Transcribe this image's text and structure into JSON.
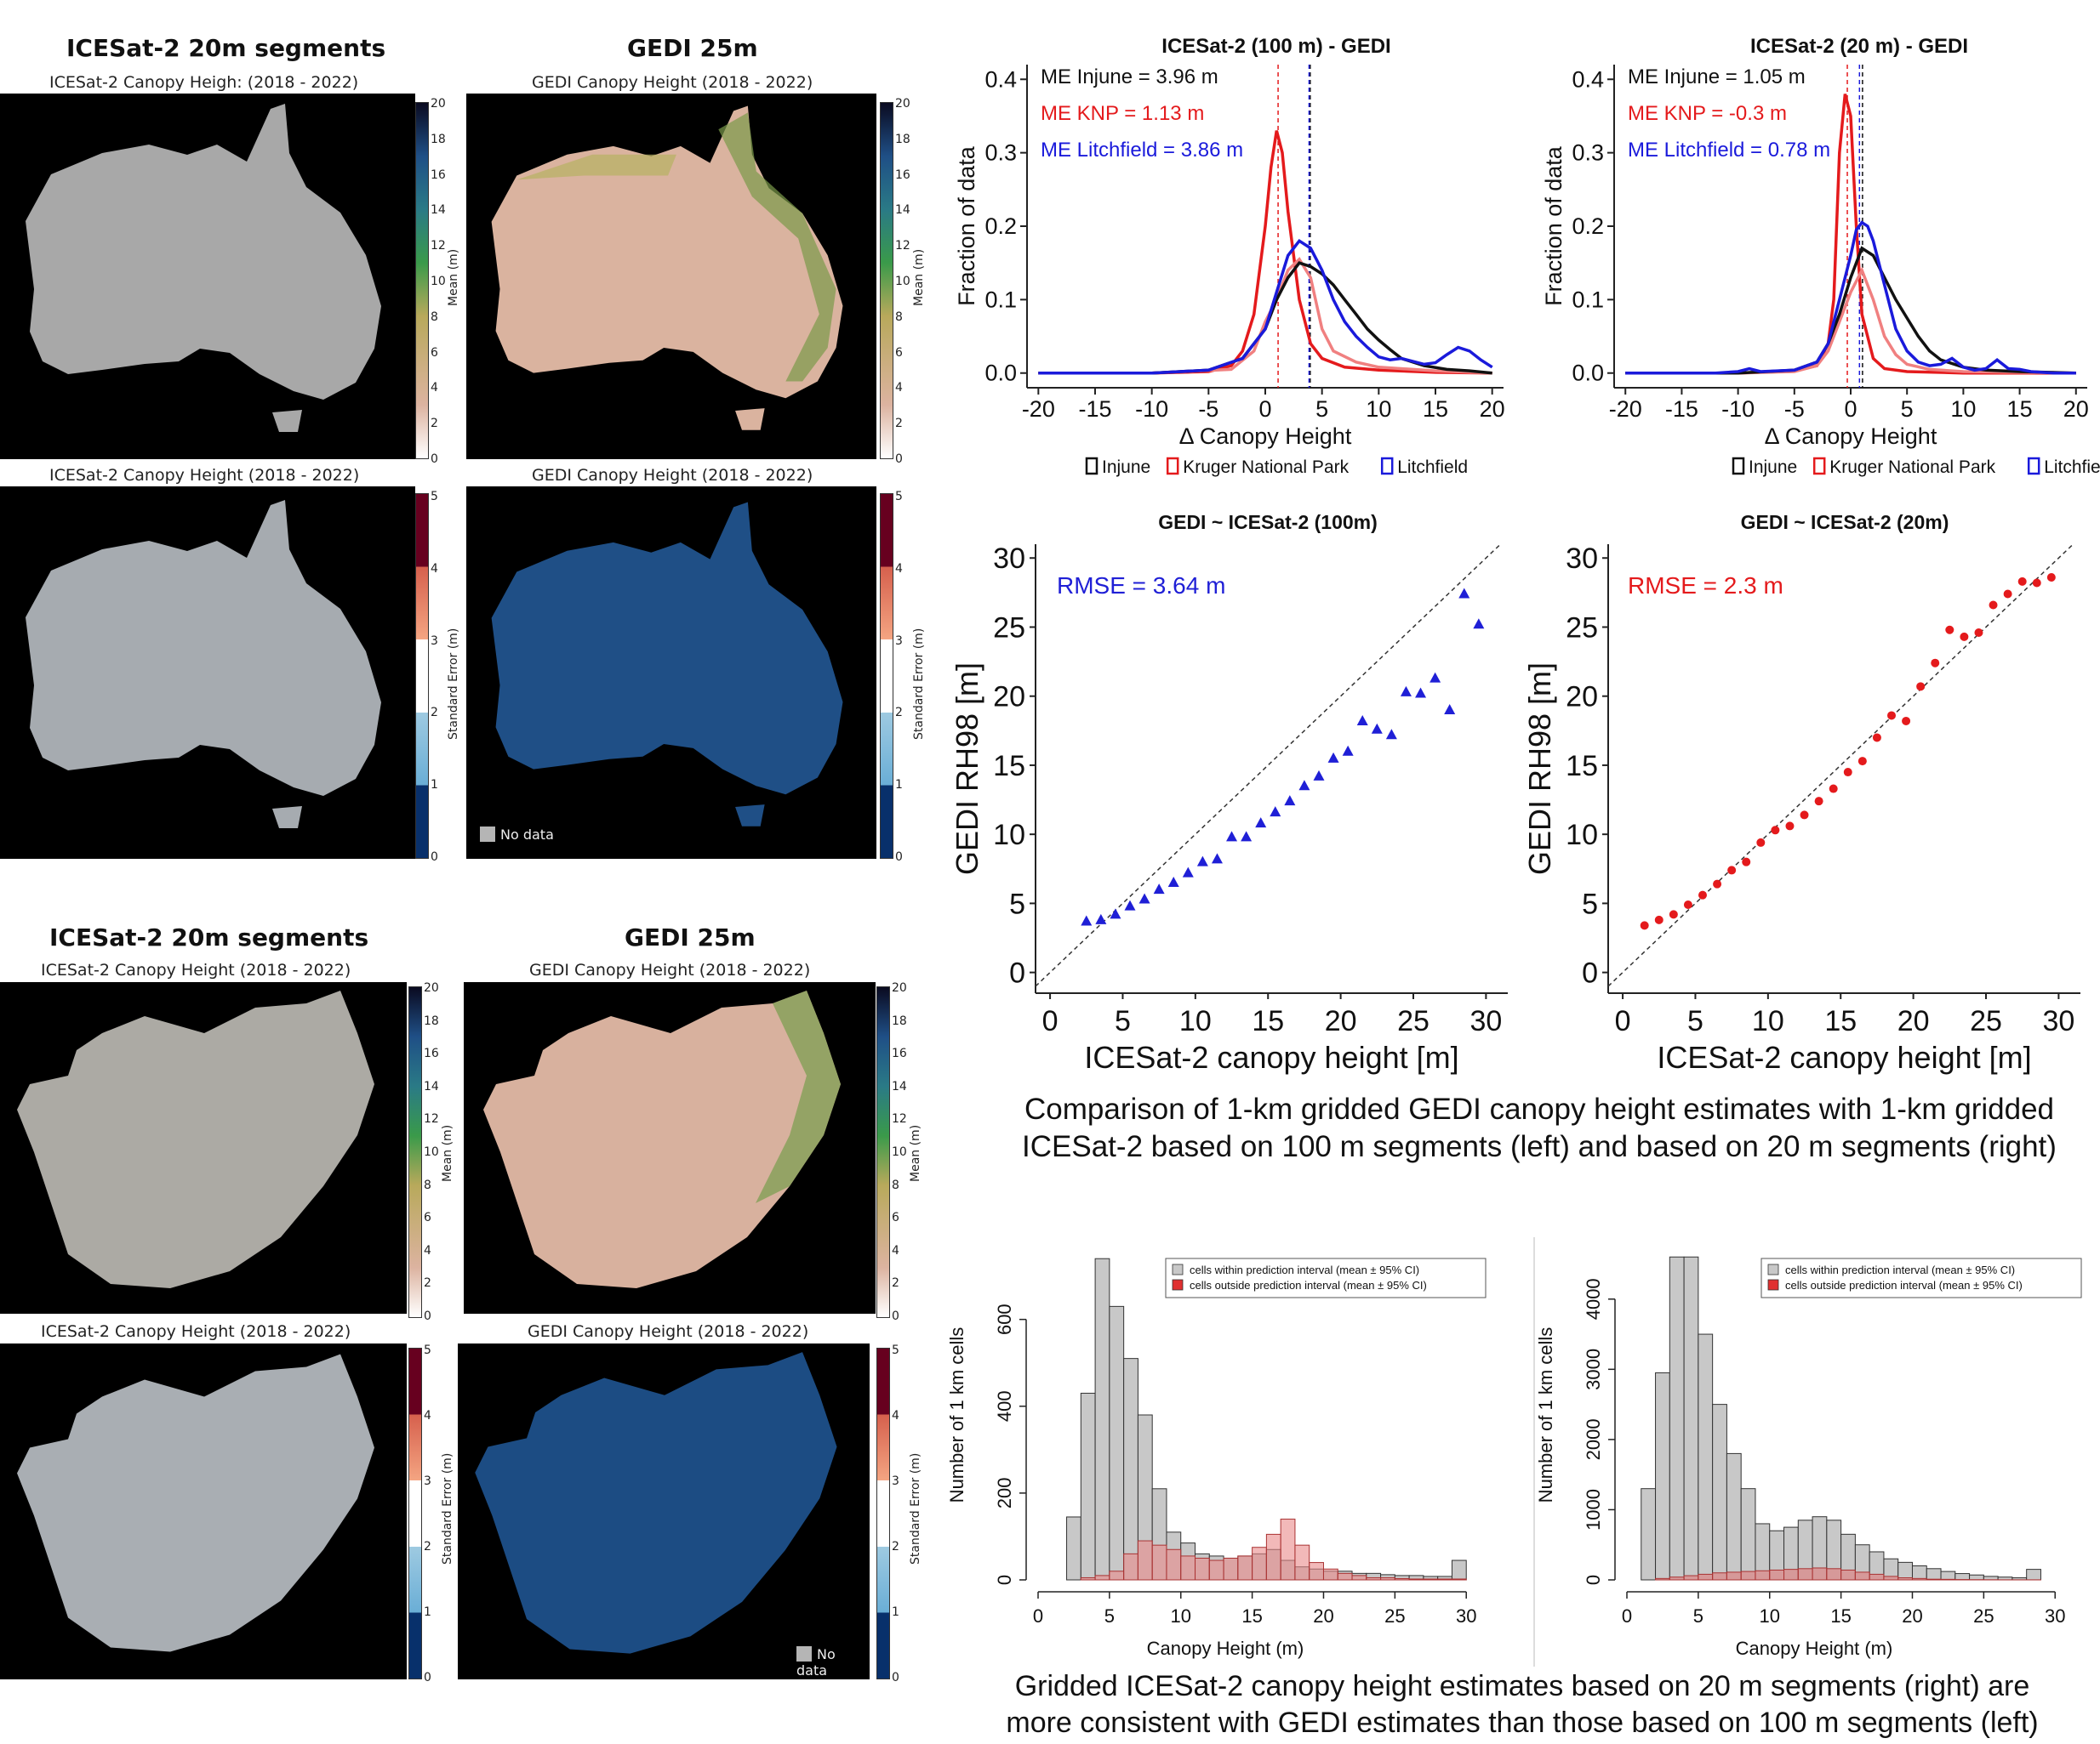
{
  "maps": {
    "australia": {
      "left_title": "ICESat-2 20m segments",
      "right_title": "GEDI 25m",
      "panels": [
        {
          "subtitle": "ICESat-2 Canopy Heigh: (2018 - 2022)",
          "metric": "Mean",
          "color": "#a8a8a8"
        },
        {
          "subtitle": "GEDI Canopy Height (2018 - 2022)",
          "metric": "Mean",
          "color": "#dab39f"
        },
        {
          "subtitle": "ICESat-2 Canopy Height (2018 - 2022)",
          "metric": "Standard Error",
          "color": "#a6abb0"
        },
        {
          "subtitle": "GEDI Canopy Height (2018 - 2022)",
          "metric": "Standard Error",
          "color": "#1f4f86"
        }
      ]
    },
    "south_africa": {
      "left_title": "ICESat-2 20m segments",
      "right_title": "GEDI 25m",
      "panels": [
        {
          "subtitle": "ICESat-2 Canopy Height (2018 - 2022)",
          "metric": "Mean",
          "color": "#acaaa4"
        },
        {
          "subtitle": "GEDI Canopy Height (2018 - 2022)",
          "metric": "Mean",
          "color": "#d8b19e"
        },
        {
          "subtitle": "ICESat-2 Canopy Height (2018 - 2022)",
          "metric": "Standard Error",
          "color": "#a9aeb3"
        },
        {
          "subtitle": "GEDI Canopy Height (2018 - 2022)",
          "metric": "Standard Error",
          "color": "#1c4c83"
        }
      ]
    },
    "mean_colorbar": {
      "title": "Mean (m)",
      "ticks": [
        "20",
        "18",
        "16",
        "14",
        "12",
        "10",
        "8",
        "6",
        "4",
        "2",
        "0"
      ]
    },
    "se_colorbar": {
      "title": "Standard Error (m)",
      "ticks": [
        "5",
        "4",
        "3",
        "2",
        "1",
        "0"
      ]
    },
    "no_data_label": "No data"
  },
  "captions": {
    "scatter": "Comparison of 1-km gridded GEDI canopy height estimates with 1-km gridded\nICESat-2 based on 100 m segments (left) and based on 20 m segments (right)",
    "histograms": "Gridded ICESat-2 canopy height estimates based on 20 m segments (right) are\nmore consistent with GEDI estimates than those based on 100 m segments (left)"
  },
  "chart_data": [
    {
      "type": "line",
      "title": "ICESat-2 (100 m) - GEDI",
      "xlabel": "Δ Canopy Height",
      "ylabel": "Fraction of data",
      "xlim": [
        -21,
        21
      ],
      "ylim": [
        -0.02,
        0.42
      ],
      "xticks": [
        -20,
        -15,
        -10,
        -5,
        0,
        5,
        10,
        15,
        20
      ],
      "yticks": [
        0.0,
        0.1,
        0.2,
        0.3,
        0.4
      ],
      "ytick_labels": [
        "0.0",
        "0.1",
        "0.2",
        "0.3",
        "0.4"
      ],
      "annotations": [
        {
          "text": "ME Injune = 3.96 m",
          "color": "#111111"
        },
        {
          "text": "ME KNP = 1.13 m",
          "color": "#e41a1c"
        },
        {
          "text": "ME Litchfield = 3.86 m",
          "color": "#1a1adb"
        }
      ],
      "vlines": [
        {
          "x": 3.96,
          "color": "#111111"
        },
        {
          "x": 1.13,
          "color": "#e41a1c"
        },
        {
          "x": 3.86,
          "color": "#1a1adb"
        }
      ],
      "legend": [
        "Injune",
        "Kruger National Park",
        "Litchfield"
      ],
      "legend_colors": [
        "#111111",
        "#e41a1c",
        "#1a1adb"
      ],
      "series": [
        {
          "name": "Kruger National Park",
          "color": "#e41a1c",
          "x": [
            -20,
            -10,
            -5,
            -3,
            -2,
            -1,
            0,
            0.5,
            1,
            1.5,
            2,
            3,
            4,
            5,
            7,
            10,
            15,
            20
          ],
          "y": [
            0,
            0,
            0.002,
            0.01,
            0.03,
            0.08,
            0.2,
            0.28,
            0.33,
            0.3,
            0.22,
            0.1,
            0.04,
            0.02,
            0.008,
            0.004,
            0.001,
            0
          ]
        },
        {
          "name": "Kruger National Park (light)",
          "color": "#f08080",
          "x": [
            -20,
            -10,
            -3,
            -1,
            0,
            1,
            2,
            3,
            4,
            5,
            6,
            8,
            10,
            15,
            20
          ],
          "y": [
            0,
            0,
            0.005,
            0.03,
            0.07,
            0.1,
            0.14,
            0.155,
            0.13,
            0.06,
            0.03,
            0.015,
            0.008,
            0.003,
            0
          ]
        },
        {
          "name": "Injune",
          "color": "#111111",
          "x": [
            -20,
            -10,
            -5,
            -2,
            0,
            1,
            2,
            3,
            4,
            5,
            6,
            7,
            8,
            9,
            10,
            11,
            12,
            14,
            16,
            18,
            20
          ],
          "y": [
            0,
            0,
            0.004,
            0.02,
            0.06,
            0.1,
            0.13,
            0.15,
            0.145,
            0.135,
            0.12,
            0.1,
            0.08,
            0.06,
            0.045,
            0.032,
            0.02,
            0.01,
            0.005,
            0.003,
            0
          ]
        },
        {
          "name": "Litchfield",
          "color": "#1a1adb",
          "x": [
            -20,
            -10,
            -5,
            -2,
            0,
            1,
            2,
            3,
            4,
            5,
            6,
            7,
            8,
            9,
            10,
            11,
            12,
            13,
            14,
            15,
            16,
            17,
            18,
            19,
            20
          ],
          "y": [
            0,
            0,
            0.004,
            0.02,
            0.06,
            0.11,
            0.16,
            0.18,
            0.17,
            0.14,
            0.1,
            0.07,
            0.05,
            0.035,
            0.022,
            0.018,
            0.02,
            0.016,
            0.012,
            0.014,
            0.025,
            0.035,
            0.03,
            0.018,
            0.008
          ]
        }
      ]
    },
    {
      "type": "line",
      "title": "ICESat-2 (20 m) - GEDI",
      "xlabel": "Δ Canopy Height",
      "ylabel": "Fraction of data",
      "xlim": [
        -21,
        21
      ],
      "ylim": [
        -0.02,
        0.42
      ],
      "xticks": [
        -20,
        -15,
        -10,
        -5,
        0,
        5,
        10,
        15,
        20
      ],
      "yticks": [
        0.0,
        0.1,
        0.2,
        0.3,
        0.4
      ],
      "ytick_labels": [
        "0.0",
        "0.1",
        "0.2",
        "0.3",
        "0.4"
      ],
      "annotations": [
        {
          "text": "ME Injune = 1.05 m",
          "color": "#111111"
        },
        {
          "text": "ME KNP = -0.3 m",
          "color": "#e41a1c"
        },
        {
          "text": "ME Litchfield = 0.78 m",
          "color": "#1a1adb"
        }
      ],
      "vlines": [
        {
          "x": 1.05,
          "color": "#111111"
        },
        {
          "x": -0.3,
          "color": "#e41a1c"
        },
        {
          "x": 0.78,
          "color": "#1a1adb"
        }
      ],
      "legend": [
        "Injune",
        "Kruger National Park",
        "Litchfield"
      ],
      "legend_colors": [
        "#111111",
        "#e41a1c",
        "#1a1adb"
      ],
      "series": [
        {
          "name": "Kruger National Park",
          "color": "#e41a1c",
          "x": [
            -20,
            -10,
            -5,
            -3,
            -2,
            -1.5,
            -1,
            -0.5,
            0,
            0.5,
            1,
            2,
            3,
            5,
            10,
            20
          ],
          "y": [
            0,
            0,
            0.003,
            0.01,
            0.04,
            0.1,
            0.3,
            0.38,
            0.35,
            0.2,
            0.08,
            0.02,
            0.006,
            0.002,
            0,
            0
          ]
        },
        {
          "name": "Kruger National Park (light)",
          "color": "#f08080",
          "x": [
            -20,
            -10,
            -5,
            -3,
            -2,
            -1,
            0,
            1,
            2,
            3,
            4,
            5,
            7,
            10,
            20
          ],
          "y": [
            0,
            0,
            0.002,
            0.01,
            0.03,
            0.07,
            0.11,
            0.14,
            0.1,
            0.05,
            0.025,
            0.012,
            0.005,
            0.002,
            0
          ]
        },
        {
          "name": "Injune",
          "color": "#111111",
          "x": [
            -20,
            -10,
            -5,
            -3,
            -2,
            -1,
            0,
            1,
            2,
            3,
            4,
            5,
            6,
            7,
            8,
            10,
            12,
            15,
            20
          ],
          "y": [
            0,
            0,
            0.004,
            0.015,
            0.04,
            0.08,
            0.13,
            0.17,
            0.16,
            0.13,
            0.1,
            0.075,
            0.05,
            0.03,
            0.018,
            0.008,
            0.004,
            0.002,
            0
          ]
        },
        {
          "name": "Litchfield",
          "color": "#1a1adb",
          "x": [
            -20,
            -12,
            -10,
            -9,
            -8,
            -5,
            -3,
            -2,
            -1,
            0,
            0.5,
            1,
            1.5,
            2,
            3,
            4,
            5,
            6,
            7,
            8,
            9,
            10,
            11,
            12,
            13,
            14,
            15,
            16,
            18,
            20
          ],
          "y": [
            0,
            0,
            0.002,
            0.006,
            0.002,
            0.004,
            0.015,
            0.04,
            0.1,
            0.16,
            0.195,
            0.205,
            0.2,
            0.18,
            0.12,
            0.06,
            0.03,
            0.015,
            0.01,
            0.012,
            0.02,
            0.008,
            0.004,
            0.006,
            0.018,
            0.006,
            0.005,
            0.002,
            0,
            0
          ]
        }
      ]
    },
    {
      "type": "scatter",
      "title": "GEDI ~ ICESat-2 (100m)",
      "xlabel": "ICESat-2 canopy height [m]",
      "ylabel": "GEDI RH98 [m]",
      "xlim": [
        -1,
        31.5
      ],
      "ylim": [
        -1.5,
        31
      ],
      "xticks": [
        0,
        5,
        10,
        15,
        20,
        25,
        30
      ],
      "yticks": [
        0,
        5,
        10,
        15,
        20,
        25,
        30
      ],
      "marker": "triangle",
      "color": "#1f1fd6",
      "annotation": "RMSE = 3.64 m",
      "identity_line": true,
      "x": [
        2.5,
        3.5,
        4.5,
        5.5,
        6.5,
        7.5,
        8.5,
        9.5,
        10.5,
        11.5,
        12.5,
        13.5,
        14.5,
        15.5,
        16.5,
        17.5,
        18.5,
        19.5,
        20.5,
        21.5,
        22.5,
        23.5,
        24.5,
        25.5,
        26.5,
        27.5,
        28.5,
        29.5
      ],
      "y": [
        3.7,
        3.8,
        4.2,
        4.8,
        5.3,
        6.0,
        6.5,
        7.2,
        8.0,
        8.2,
        9.8,
        9.8,
        10.8,
        11.6,
        12.4,
        13.5,
        14.2,
        15.5,
        16.0,
        18.2,
        17.6,
        17.2,
        20.3,
        20.2,
        21.3,
        19.0,
        27.4,
        25.2
      ]
    },
    {
      "type": "scatter",
      "title": "GEDI ~ ICESat-2 (20m)",
      "xlabel": "ICESat-2 canopy height [m]",
      "ylabel": "GEDI RH98 [m]",
      "xlim": [
        -1,
        31.5
      ],
      "ylim": [
        -1.5,
        31
      ],
      "xticks": [
        0,
        5,
        10,
        15,
        20,
        25,
        30
      ],
      "yticks": [
        0,
        5,
        10,
        15,
        20,
        25,
        30
      ],
      "marker": "circle",
      "color": "#e41a1c",
      "annotation": "RMSE = 2.3 m",
      "identity_line": true,
      "x": [
        1.5,
        2.5,
        3.5,
        4.5,
        5.5,
        6.5,
        7.5,
        8.5,
        9.5,
        10.5,
        11.5,
        12.5,
        13.5,
        14.5,
        15.5,
        16.5,
        17.5,
        18.5,
        19.5,
        20.5,
        21.5,
        22.5,
        23.5,
        24.5,
        25.5,
        26.5,
        27.5,
        28.5,
        29.5
      ],
      "y": [
        3.4,
        3.8,
        4.2,
        4.9,
        5.6,
        6.4,
        7.4,
        8.0,
        9.4,
        10.3,
        10.6,
        11.4,
        12.4,
        13.3,
        14.5,
        15.3,
        17.0,
        18.6,
        18.2,
        20.7,
        22.4,
        24.8,
        24.3,
        24.6,
        26.6,
        27.4,
        28.3,
        28.2,
        28.6
      ]
    },
    {
      "type": "bar",
      "title": "",
      "xlabel": "Canopy Height (m)",
      "ylabel": "Number of 1 km cells",
      "xlim": [
        0,
        31
      ],
      "ylim": [
        0,
        760
      ],
      "xticks": [
        0,
        5,
        10,
        15,
        20,
        25,
        30
      ],
      "yticks": [
        0,
        200,
        400,
        600
      ],
      "bin_edges_start": 2,
      "bin_width": 1,
      "legend": [
        "cells within prediction interval (mean ± 95% CI)",
        "cells outside prediction interval (mean ± 95% CI)"
      ],
      "legend_colors": [
        "#c8c8c8",
        "#e03030"
      ],
      "series": [
        {
          "name": "cells within prediction interval (mean ± 95% CI)",
          "color": "#c8c8c8",
          "values": [
            145,
            430,
            740,
            630,
            510,
            380,
            210,
            110,
            85,
            60,
            55,
            50,
            55,
            60,
            70,
            45,
            30,
            25,
            20,
            20,
            15,
            15,
            12,
            10,
            10,
            8,
            8,
            45
          ]
        },
        {
          "name": "cells outside prediction interval (mean ± 95% CI)",
          "color": "#ea8a8a",
          "values": [
            0,
            5,
            10,
            20,
            60,
            90,
            80,
            70,
            55,
            50,
            45,
            50,
            55,
            75,
            105,
            140,
            80,
            40,
            25,
            15,
            10,
            5,
            5,
            3,
            2,
            2,
            2,
            2
          ]
        }
      ]
    },
    {
      "type": "bar",
      "title": "",
      "xlabel": "Canopy Height (m)",
      "ylabel": "Number of 1 km cells",
      "xlim": [
        0,
        31
      ],
      "ylim": [
        0,
        4700
      ],
      "xticks": [
        0,
        5,
        10,
        15,
        20,
        25,
        30
      ],
      "yticks": [
        0,
        1000,
        2000,
        3000,
        4000
      ],
      "bin_edges_start": 1,
      "bin_width": 1,
      "legend": [
        "cells within prediction interval (mean ± 95% CI)",
        "cells outside prediction interval (mean ± 95% CI)"
      ],
      "legend_colors": [
        "#c8c8c8",
        "#e03030"
      ],
      "series": [
        {
          "name": "cells within prediction interval (mean ± 95% CI)",
          "color": "#c8c8c8",
          "values": [
            1300,
            2950,
            4600,
            4600,
            3500,
            2500,
            1800,
            1300,
            800,
            700,
            750,
            850,
            900,
            850,
            650,
            500,
            400,
            300,
            250,
            200,
            160,
            120,
            90,
            70,
            50,
            40,
            30,
            150
          ]
        },
        {
          "name": "cells outside prediction interval (mean ± 95% CI)",
          "color": "#e07a7a",
          "values": [
            0,
            20,
            40,
            60,
            80,
            100,
            110,
            120,
            130,
            140,
            150,
            160,
            170,
            160,
            140,
            110,
            80,
            50,
            30,
            20,
            10,
            8,
            5,
            3,
            2,
            1,
            1,
            1
          ]
        }
      ]
    }
  ]
}
